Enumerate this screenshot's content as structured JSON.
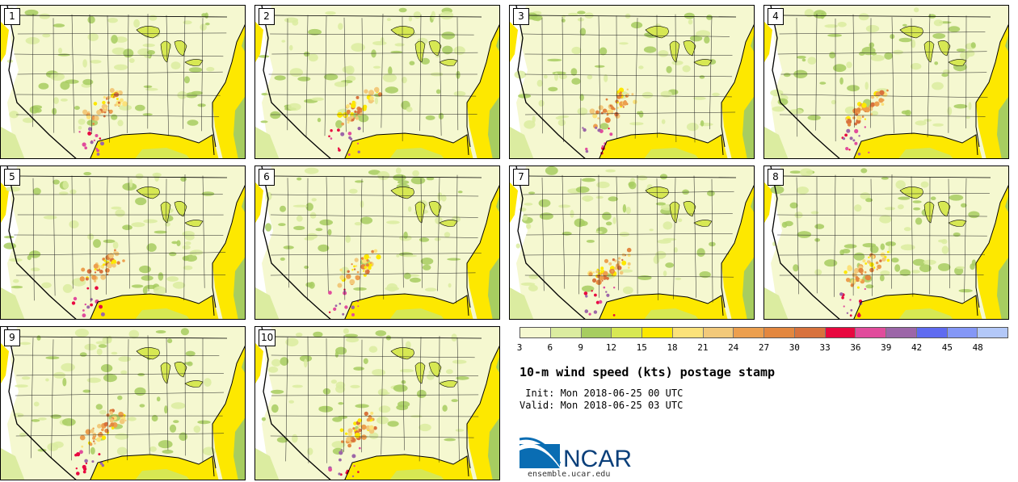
{
  "panels": [
    {
      "label": "1"
    },
    {
      "label": "2"
    },
    {
      "label": "3"
    },
    {
      "label": "4"
    },
    {
      "label": "5"
    },
    {
      "label": "6"
    },
    {
      "label": "7"
    },
    {
      "label": "8"
    },
    {
      "label": "9"
    },
    {
      "label": "10"
    }
  ],
  "colorbar": {
    "colors": [
      "#f5f8d0",
      "#dbeca0",
      "#a7cd60",
      "#d7e853",
      "#fde800",
      "#fbe27a",
      "#f2c97a",
      "#ec9f4e",
      "#e3873f",
      "#d8723d",
      "#e8083f",
      "#e14c9c",
      "#9c66a8",
      "#5f6bf0",
      "#8497f6",
      "#b3c8f8"
    ],
    "tick_labels": [
      "3",
      "6",
      "9",
      "12",
      "15",
      "18",
      "21",
      "24",
      "27",
      "30",
      "33",
      "36",
      "39",
      "42",
      "45",
      "48"
    ]
  },
  "title": "10-m wind speed (kts) postage stamp",
  "init": " Init: Mon 2018-06-25 00 UTC",
  "valid": "Valid: Mon 2018-06-25 03 UTC",
  "logo_text": "NCAR",
  "site": "ensemble.ucar.edu"
}
